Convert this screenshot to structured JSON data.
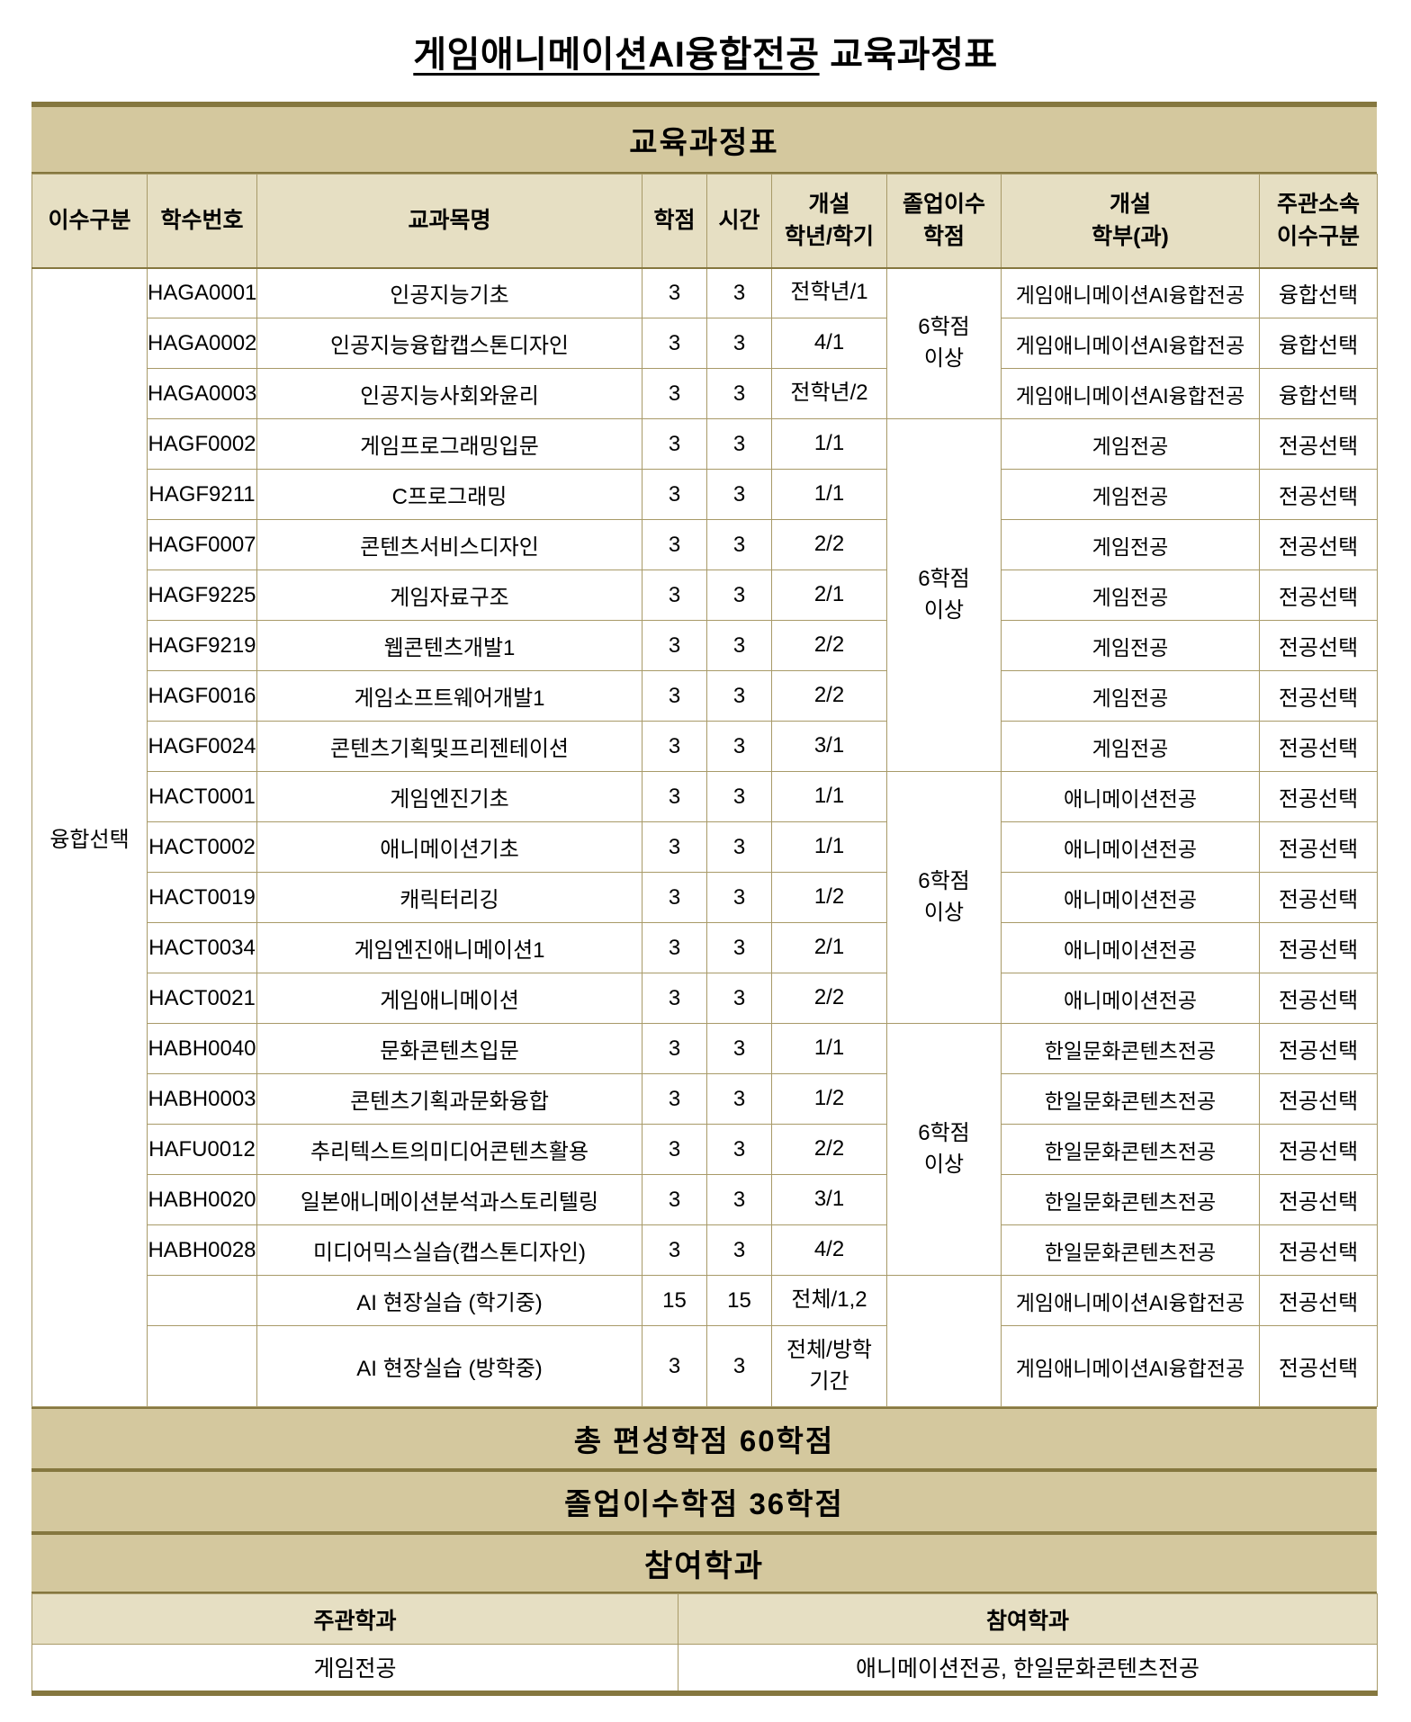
{
  "title": {
    "underlined": "게임애니메이션AI융합전공",
    "suffix": " 교육과정표"
  },
  "colors": {
    "band_bg": "#d4c89e",
    "header_bg": "#e6dfc3",
    "border_dark": "#85773f",
    "border_light": "#a89a68"
  },
  "table": {
    "title": "교육과정표",
    "columns": [
      "이수구분",
      "학수번호",
      "교과목명",
      "학점",
      "시간",
      "개설\n학년/학기",
      "졸업이수\n학점",
      "개설\n학부(과)",
      "주관소속\n이수구분"
    ],
    "completion_category": "융합선택",
    "groups": [
      {
        "graduation_credits": "6학점\n이상",
        "courses": [
          {
            "code": "HAGA0001",
            "name": "인공지능기초",
            "credits": "3",
            "hours": "3",
            "semester": "전학년/1",
            "department": "게임애니메이션AI융합전공",
            "type": "융합선택"
          },
          {
            "code": "HAGA0002",
            "name": "인공지능융합캡스톤디자인",
            "credits": "3",
            "hours": "3",
            "semester": "4/1",
            "department": "게임애니메이션AI융합전공",
            "type": "융합선택"
          },
          {
            "code": "HAGA0003",
            "name": "인공지능사회와윤리",
            "credits": "3",
            "hours": "3",
            "semester": "전학년/2",
            "department": "게임애니메이션AI융합전공",
            "type": "융합선택"
          }
        ]
      },
      {
        "graduation_credits": "6학점\n이상",
        "courses": [
          {
            "code": "HAGF0002",
            "name": "게임프로그래밍입문",
            "credits": "3",
            "hours": "3",
            "semester": "1/1",
            "department": "게임전공",
            "type": "전공선택"
          },
          {
            "code": "HAGF9211",
            "name": "C프로그래밍",
            "credits": "3",
            "hours": "3",
            "semester": "1/1",
            "department": "게임전공",
            "type": "전공선택"
          },
          {
            "code": "HAGF0007",
            "name": "콘텐츠서비스디자인",
            "credits": "3",
            "hours": "3",
            "semester": "2/2",
            "department": "게임전공",
            "type": "전공선택"
          },
          {
            "code": "HAGF9225",
            "name": "게임자료구조",
            "credits": "3",
            "hours": "3",
            "semester": "2/1",
            "department": "게임전공",
            "type": "전공선택"
          },
          {
            "code": "HAGF9219",
            "name": "웹콘텐츠개발1",
            "credits": "3",
            "hours": "3",
            "semester": "2/2",
            "department": "게임전공",
            "type": "전공선택"
          },
          {
            "code": "HAGF0016",
            "name": "게임소프트웨어개발1",
            "credits": "3",
            "hours": "3",
            "semester": "2/2",
            "department": "게임전공",
            "type": "전공선택"
          },
          {
            "code": "HAGF0024",
            "name": "콘텐츠기획및프리젠테이션",
            "credits": "3",
            "hours": "3",
            "semester": "3/1",
            "department": "게임전공",
            "type": "전공선택"
          }
        ]
      },
      {
        "graduation_credits": "6학점\n이상",
        "courses": [
          {
            "code": "HACT0001",
            "name": "게임엔진기초",
            "credits": "3",
            "hours": "3",
            "semester": "1/1",
            "department": "애니메이션전공",
            "type": "전공선택"
          },
          {
            "code": "HACT0002",
            "name": "애니메이션기초",
            "credits": "3",
            "hours": "3",
            "semester": "1/1",
            "department": "애니메이션전공",
            "type": "전공선택"
          },
          {
            "code": "HACT0019",
            "name": "캐릭터리깅",
            "credits": "3",
            "hours": "3",
            "semester": "1/2",
            "department": "애니메이션전공",
            "type": "전공선택"
          },
          {
            "code": "HACT0034",
            "name": "게임엔진애니메이션1",
            "credits": "3",
            "hours": "3",
            "semester": "2/1",
            "department": "애니메이션전공",
            "type": "전공선택"
          },
          {
            "code": "HACT0021",
            "name": "게임애니메이션",
            "credits": "3",
            "hours": "3",
            "semester": "2/2",
            "department": "애니메이션전공",
            "type": "전공선택"
          }
        ]
      },
      {
        "graduation_credits": "6학점\n이상",
        "courses": [
          {
            "code": "HABH0040",
            "name": "문화콘텐츠입문",
            "credits": "3",
            "hours": "3",
            "semester": "1/1",
            "department": "한일문화콘텐츠전공",
            "type": "전공선택"
          },
          {
            "code": "HABH0003",
            "name": "콘텐츠기획과문화융합",
            "credits": "3",
            "hours": "3",
            "semester": "1/2",
            "department": "한일문화콘텐츠전공",
            "type": "전공선택"
          },
          {
            "code": "HAFU0012",
            "name": "추리텍스트의미디어콘텐츠활용",
            "credits": "3",
            "hours": "3",
            "semester": "2/2",
            "department": "한일문화콘텐츠전공",
            "type": "전공선택"
          },
          {
            "code": "HABH0020",
            "name": "일본애니메이션분석과스토리텔링",
            "credits": "3",
            "hours": "3",
            "semester": "3/1",
            "department": "한일문화콘텐츠전공",
            "type": "전공선택"
          },
          {
            "code": "HABH0028",
            "name": "미디어믹스실습(캡스톤디자인)",
            "credits": "3",
            "hours": "3",
            "semester": "4/2",
            "department": "한일문화콘텐츠전공",
            "type": "전공선택"
          }
        ]
      },
      {
        "graduation_credits": "",
        "courses": [
          {
            "code": "",
            "name": "AI 현장실습 (학기중)",
            "credits": "15",
            "hours": "15",
            "semester": "전체/1,2",
            "department": "게임애니메이션AI융합전공",
            "type": "전공선택"
          },
          {
            "code": "",
            "name": "AI 현장실습 (방학중)",
            "credits": "3",
            "hours": "3",
            "semester": "전체/방학\n기간",
            "department": "게임애니메이션AI융합전공",
            "type": "전공선택",
            "tall": true
          }
        ]
      }
    ]
  },
  "summary": {
    "total": "총 편성학점 60학점",
    "graduation": "졸업이수학점 36학점"
  },
  "participation": {
    "band_title": "참여학과",
    "columns": [
      "주관학과",
      "참여학과"
    ],
    "values": [
      "게임전공",
      "애니메이션전공, 한일문화콘텐츠전공"
    ]
  }
}
